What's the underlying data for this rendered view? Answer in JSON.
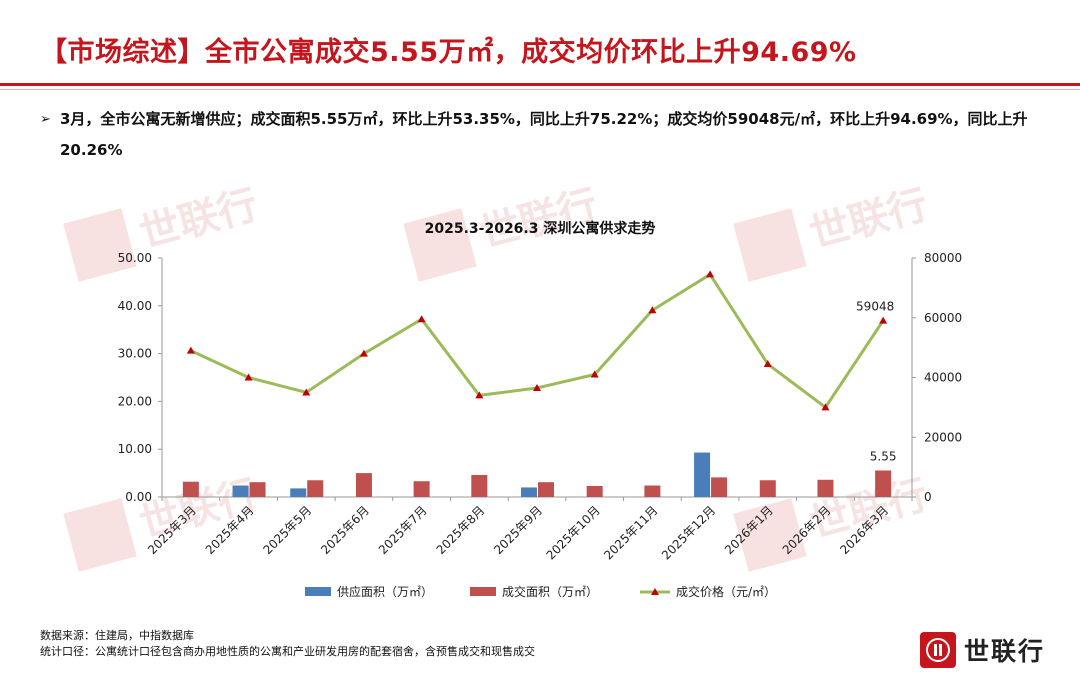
{
  "header": {
    "title": "【市场综述】全市公寓成交5.55万㎡，成交均价环比上升94.69%"
  },
  "summary": {
    "bullet_icon": "arrow-right-icon",
    "text": "3月，全市公寓无新增供应；成交面积5.55万㎡，环比上升53.35%，同比上升75.22%；成交均价59048元/㎡，环比上升94.69%，同比上升20.26%"
  },
  "chart_data": {
    "type": "bar+line",
    "title": "2025.3-2026.3 深圳公寓供求走势",
    "categories": [
      "2025年3月",
      "2025年4月",
      "2025年5月",
      "2025年6月",
      "2025年7月",
      "2025年8月",
      "2025年9月",
      "2025年10月",
      "2025年11月",
      "2025年12月",
      "2026年1月",
      "2026年2月",
      "2026年3月"
    ],
    "series": [
      {
        "name": "供应面积（万㎡）",
        "type": "bar",
        "axis": "left",
        "color": "#4a7ebb",
        "values": [
          0,
          2.4,
          1.8,
          0,
          0,
          0,
          2.0,
          0,
          0,
          9.3,
          0,
          0,
          0
        ]
      },
      {
        "name": "成交面积（万㎡）",
        "type": "bar",
        "axis": "left",
        "color": "#c0504d",
        "values": [
          3.2,
          3.1,
          3.5,
          5.0,
          3.3,
          4.6,
          3.1,
          2.3,
          2.4,
          4.1,
          3.5,
          3.6,
          5.55
        ]
      },
      {
        "name": "成交价格（元/㎡）",
        "type": "line",
        "axis": "right",
        "color": "#9bbb59",
        "marker_color": "#c00000",
        "values": [
          49000,
          40000,
          35000,
          48000,
          59500,
          34000,
          36500,
          41000,
          62500,
          74500,
          44500,
          30000,
          59048
        ]
      }
    ],
    "left_axis": {
      "min": 0,
      "max": 50,
      "ticks": [
        "0.00",
        "10.00",
        "20.00",
        "30.00",
        "40.00",
        "50.00"
      ]
    },
    "right_axis": {
      "min": 0,
      "max": 80000,
      "ticks": [
        "0",
        "20000",
        "40000",
        "60000",
        "80000"
      ]
    },
    "data_labels": [
      {
        "series": 1,
        "index": 12,
        "text": "5.55"
      },
      {
        "series": 2,
        "index": 12,
        "text": "59048"
      }
    ],
    "legend_position": "bottom",
    "grid": false
  },
  "footer": {
    "source": "数据来源：住建局，中指数据库",
    "note": "统计口径：公寓统计口径包含商办用地性质的公寓和产业研发用房的配套宿舍，含预售成交和现售成交"
  },
  "brand": {
    "logo_text": "世联行",
    "logo_icon": "shilian-logo-icon",
    "watermark_text": "世联行",
    "accent_color": "#c4161c"
  }
}
